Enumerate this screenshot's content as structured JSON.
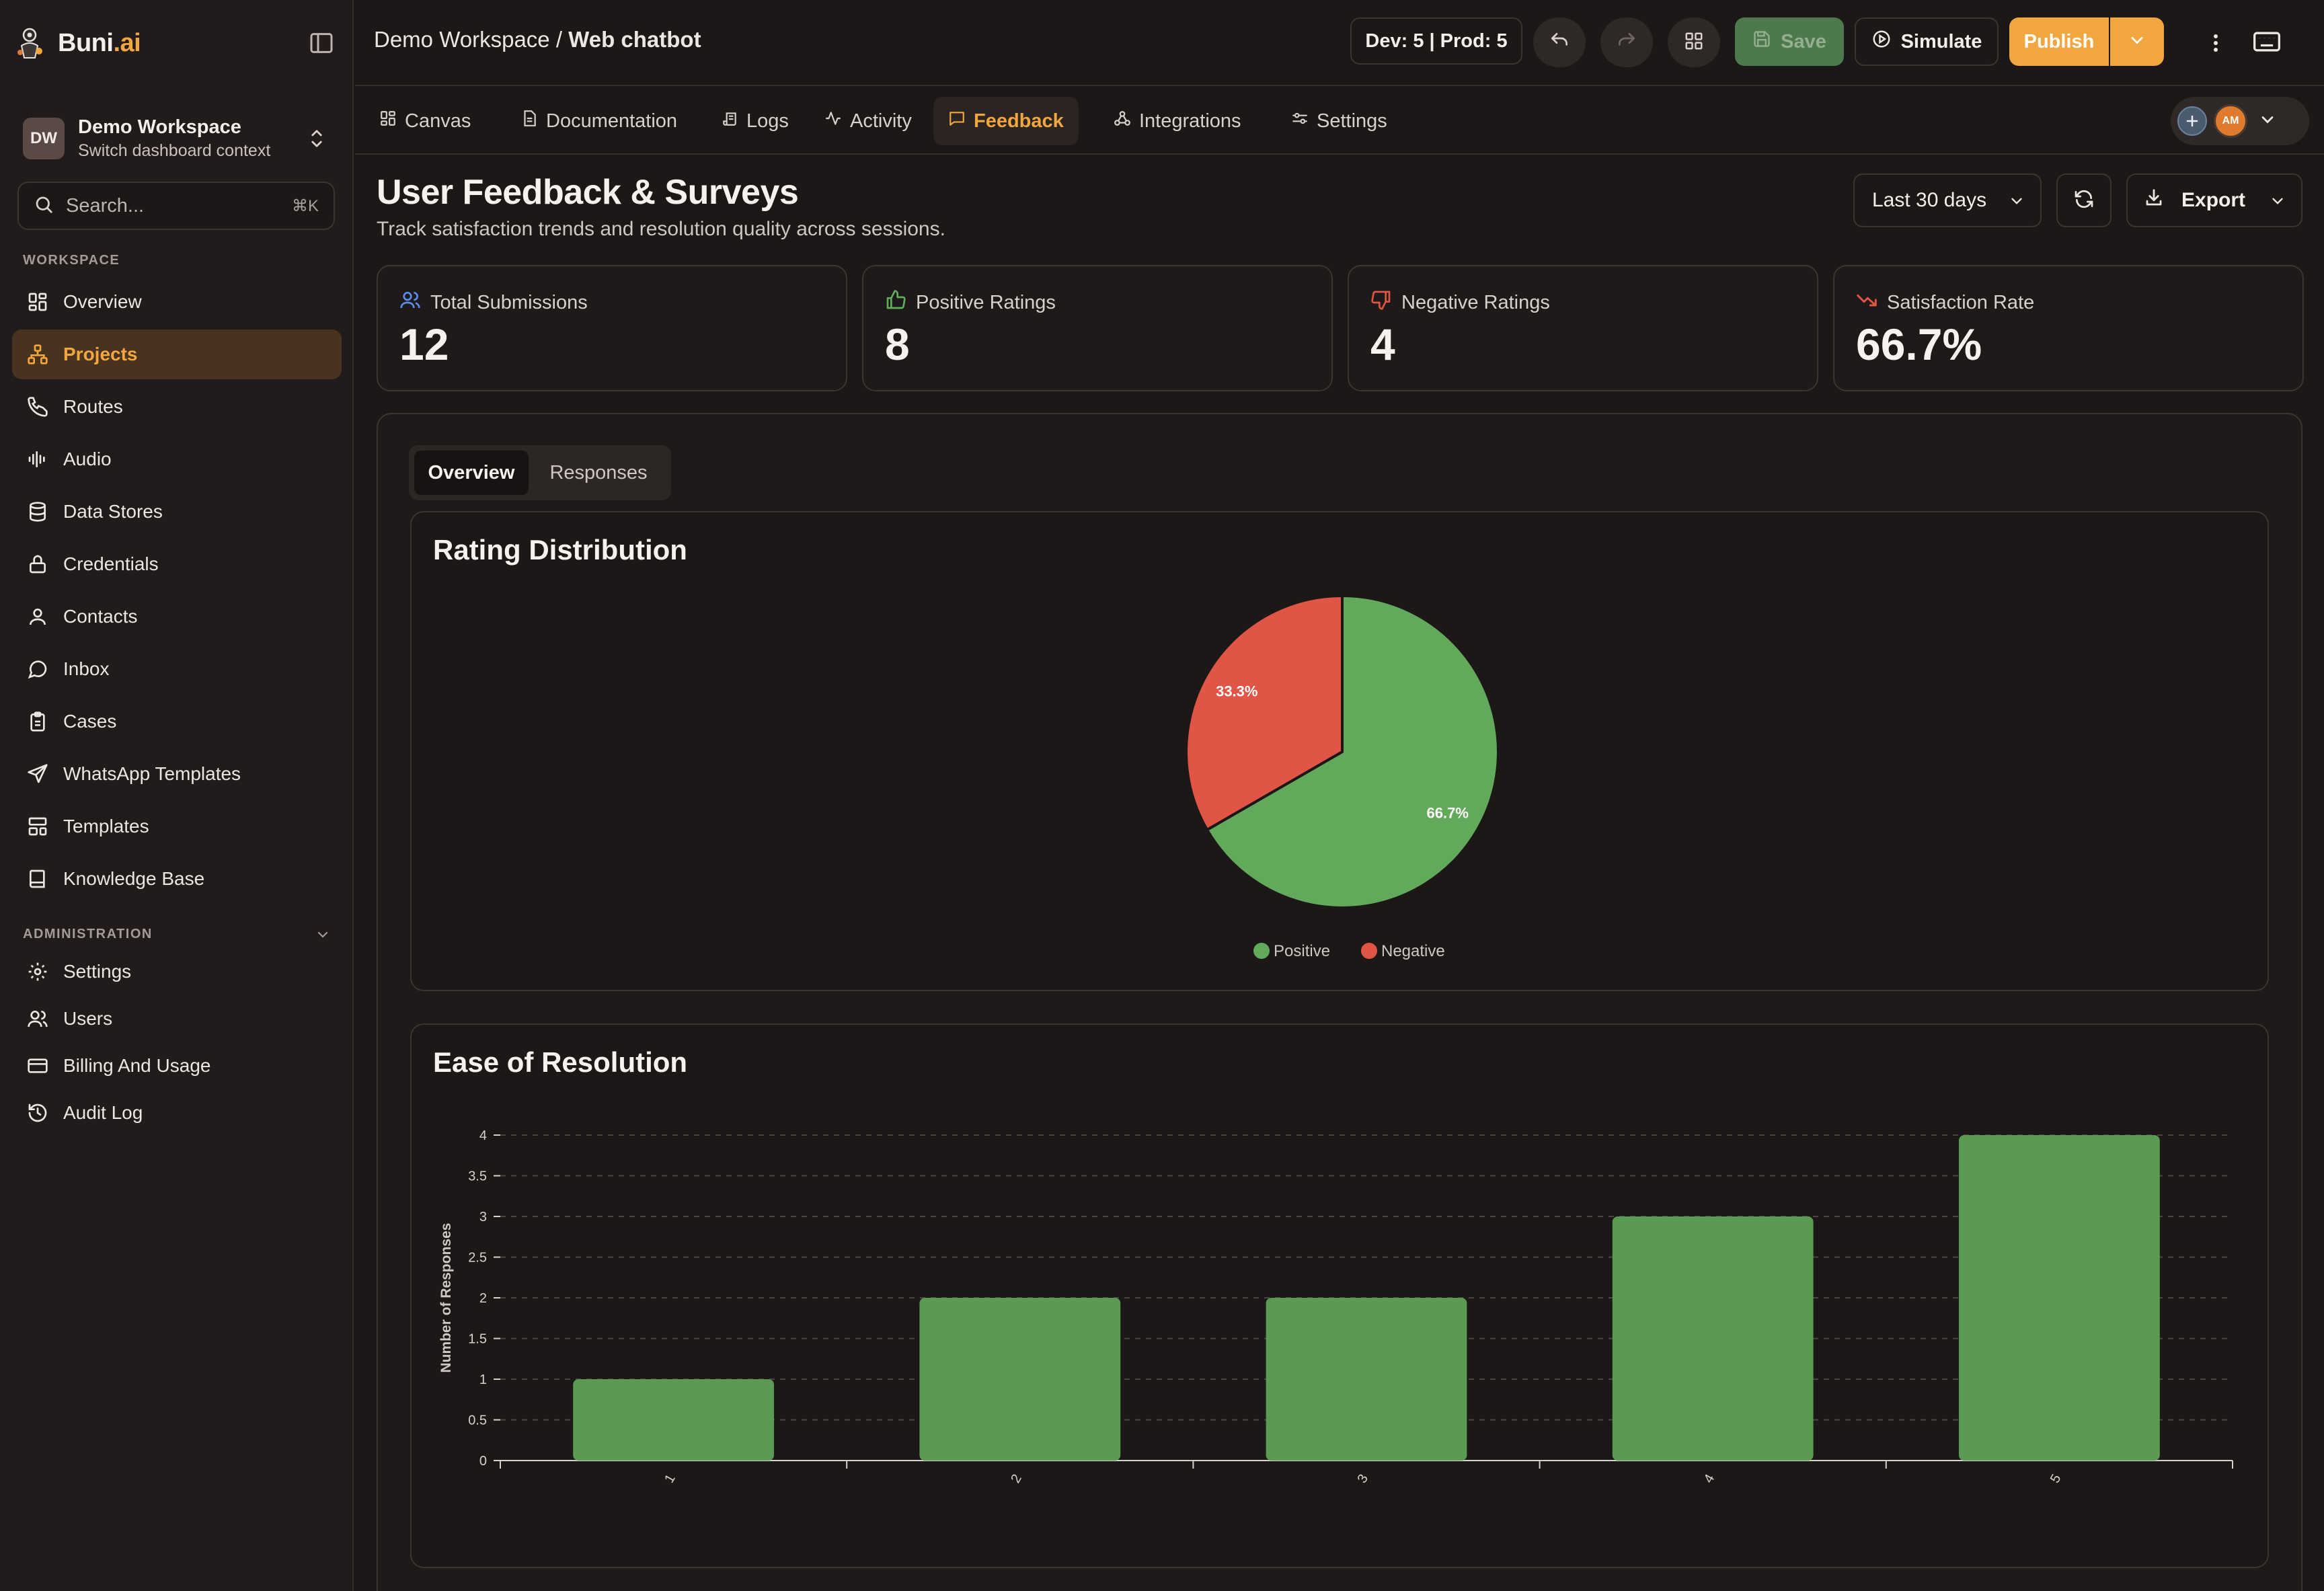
{
  "app": {
    "brand_name": "Buni",
    "brand_suffix": ".ai"
  },
  "sidebar": {
    "workspace": {
      "initials": "DW",
      "name": "Demo Workspace",
      "subtitle": "Switch dashboard context"
    },
    "search": {
      "placeholder": "Search...",
      "shortcut": "⌘K"
    },
    "workspace_label": "WORKSPACE",
    "workspace_items": [
      {
        "label": "Overview",
        "icon": "grid-icon"
      },
      {
        "label": "Projects",
        "icon": "projects-icon",
        "active": true
      },
      {
        "label": "Routes",
        "icon": "phone-icon"
      },
      {
        "label": "Audio",
        "icon": "audio-wave-icon"
      },
      {
        "label": "Data Stores",
        "icon": "database-icon"
      },
      {
        "label": "Credentials",
        "icon": "lock-icon"
      },
      {
        "label": "Contacts",
        "icon": "user-icon"
      },
      {
        "label": "Inbox",
        "icon": "message-icon"
      },
      {
        "label": "Cases",
        "icon": "clipboard-icon"
      },
      {
        "label": "WhatsApp Templates",
        "icon": "send-icon"
      },
      {
        "label": "Templates",
        "icon": "layout-icon"
      },
      {
        "label": "Knowledge Base",
        "icon": "book-icon"
      }
    ],
    "admin_label": "ADMINISTRATION",
    "admin_items": [
      {
        "label": "Settings",
        "icon": "gear-icon"
      },
      {
        "label": "Users",
        "icon": "users-icon"
      },
      {
        "label": "Billing And Usage",
        "icon": "credit-card-icon"
      },
      {
        "label": "Audit Log",
        "icon": "history-icon"
      }
    ]
  },
  "topbar": {
    "workspace": "Demo Workspace",
    "separator": " / ",
    "project": "Web chatbot",
    "env_status": "Dev: 5 | Prod: 5",
    "save_label": "Save",
    "simulate_label": "Simulate",
    "publish_label": "Publish"
  },
  "tabs": [
    {
      "label": "Canvas",
      "icon": "grid-icon"
    },
    {
      "label": "Documentation",
      "icon": "document-icon"
    },
    {
      "label": "Logs",
      "icon": "scroll-icon"
    },
    {
      "label": "Activity",
      "icon": "activity-icon"
    },
    {
      "label": "Feedback",
      "icon": "message-square-icon",
      "active": true
    },
    {
      "label": "Integrations",
      "icon": "webhook-icon"
    },
    {
      "label": "Settings",
      "icon": "sliders-icon"
    }
  ],
  "presence": {
    "avatar_initials": "AM"
  },
  "page": {
    "title": "User Feedback & Surveys",
    "subtitle": "Track satisfaction trends and resolution quality across sessions.",
    "date_range": "Last 30 days",
    "export_label": "Export"
  },
  "stats": [
    {
      "label": "Total Submissions",
      "value": "12",
      "icon": "users-icon",
      "icon_color": "#5b8def"
    },
    {
      "label": "Positive Ratings",
      "value": "8",
      "icon": "thumbs-up-icon",
      "icon_color": "#5fae5d"
    },
    {
      "label": "Negative Ratings",
      "value": "4",
      "icon": "thumbs-down-icon",
      "icon_color": "#e05545"
    },
    {
      "label": "Satisfaction Rate",
      "value": "66.7%",
      "icon": "trending-down-icon",
      "icon_color": "#e05545"
    }
  ],
  "view_tabs": [
    {
      "label": "Overview",
      "active": true
    },
    {
      "label": "Responses"
    }
  ],
  "colors": {
    "accent": "#f2a63f",
    "positive": "#63a95c",
    "negative": "#e05545",
    "bar": "#5a9a52"
  },
  "chart_data": [
    {
      "type": "pie",
      "title": "Rating Distribution",
      "labels": [
        "Positive",
        "Negative"
      ],
      "values": [
        8,
        4
      ],
      "percent_labels": [
        "66.7%",
        "33.3%"
      ],
      "colors": [
        "#63a95c",
        "#e05545"
      ],
      "legend": "bottom"
    },
    {
      "type": "bar",
      "title": "Ease of Resolution",
      "categories": [
        "1",
        "2",
        "3",
        "4",
        "5"
      ],
      "values": [
        1,
        2,
        2,
        3,
        4
      ],
      "ylabel": "Number of Responses",
      "xlabel": "",
      "ylim": [
        0,
        4
      ],
      "yticks": [
        "0",
        "0.5",
        "1",
        "1.5",
        "2",
        "2.5",
        "3",
        "3.5",
        "4"
      ],
      "grid": true
    }
  ]
}
